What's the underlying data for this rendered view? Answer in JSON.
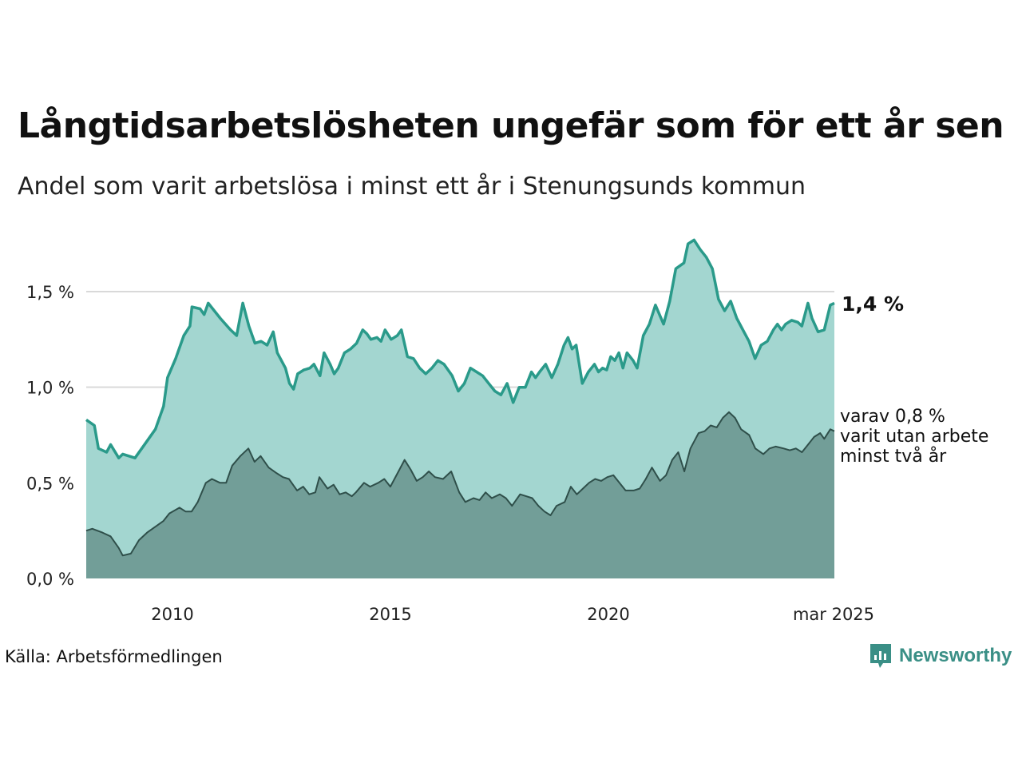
{
  "title": "Långtidsarbetslösheten ungefär som för ett år sen",
  "subtitle": "Andel som varit arbetslösa i minst ett år i Stenungsunds kommun",
  "source": "Källa: Arbetsförmedlingen",
  "brand": "Newsworthy",
  "colors": {
    "total_line": "#2a9a8a",
    "total_fill": "#a3d6d0",
    "long_line": "#2f4f4a",
    "long_fill": "#729e98",
    "grid": "#d9d9d9"
  },
  "chart_data": {
    "type": "area",
    "title": "Långtidsarbetslösheten ungefär som för ett år sen",
    "ylabel": "",
    "xlabel": "",
    "ylim": [
      0,
      1.8
    ],
    "xlim": [
      2008.0,
      2025.17
    ],
    "grid": true,
    "yticks": [
      {
        "value": 0.0,
        "label": "0,0 %"
      },
      {
        "value": 0.5,
        "label": "0,5 %"
      },
      {
        "value": 1.0,
        "label": "1,0 %"
      },
      {
        "value": 1.5,
        "label": "1,5 %"
      }
    ],
    "xticks": [
      {
        "value": 2010,
        "label": "2010"
      },
      {
        "value": 2015,
        "label": "2015"
      },
      {
        "value": 2020,
        "label": "2020"
      },
      {
        "value": 2025,
        "label": "mar 2025"
      }
    ],
    "annotations": {
      "total_label": "1,4 %",
      "long_label_lines": [
        "varav 0,8 %",
        "varit utan arbete",
        "minst två år"
      ]
    },
    "series": [
      {
        "key": "total",
        "points": [
          [
            2008.0,
            0.83
          ],
          [
            2008.2,
            0.8
          ],
          [
            2008.3,
            0.68
          ],
          [
            2008.5,
            0.66
          ],
          [
            2008.6,
            0.7
          ],
          [
            2008.8,
            0.63
          ],
          [
            2008.9,
            0.65
          ],
          [
            2009.2,
            0.63
          ],
          [
            2009.5,
            0.72
          ],
          [
            2009.7,
            0.78
          ],
          [
            2009.9,
            0.9
          ],
          [
            2010.0,
            1.05
          ],
          [
            2010.2,
            1.15
          ],
          [
            2010.4,
            1.27
          ],
          [
            2010.55,
            1.32
          ],
          [
            2010.6,
            1.42
          ],
          [
            2010.8,
            1.41
          ],
          [
            2010.9,
            1.38
          ],
          [
            2011.0,
            1.44
          ],
          [
            2011.3,
            1.36
          ],
          [
            2011.55,
            1.3
          ],
          [
            2011.7,
            1.27
          ],
          [
            2011.85,
            1.44
          ],
          [
            2012.0,
            1.32
          ],
          [
            2012.15,
            1.23
          ],
          [
            2012.3,
            1.24
          ],
          [
            2012.45,
            1.22
          ],
          [
            2012.6,
            1.29
          ],
          [
            2012.7,
            1.18
          ],
          [
            2012.9,
            1.1
          ],
          [
            2013.0,
            1.02
          ],
          [
            2013.1,
            0.99
          ],
          [
            2013.2,
            1.07
          ],
          [
            2013.35,
            1.09
          ],
          [
            2013.5,
            1.1
          ],
          [
            2013.6,
            1.12
          ],
          [
            2013.75,
            1.06
          ],
          [
            2013.85,
            1.18
          ],
          [
            2014.0,
            1.12
          ],
          [
            2014.1,
            1.07
          ],
          [
            2014.2,
            1.1
          ],
          [
            2014.35,
            1.18
          ],
          [
            2014.5,
            1.2
          ],
          [
            2014.65,
            1.23
          ],
          [
            2014.8,
            1.3
          ],
          [
            2014.9,
            1.28
          ],
          [
            2015.0,
            1.25
          ],
          [
            2015.15,
            1.26
          ],
          [
            2015.25,
            1.24
          ],
          [
            2015.35,
            1.3
          ],
          [
            2015.5,
            1.25
          ],
          [
            2015.65,
            1.27
          ],
          [
            2015.75,
            1.3
          ],
          [
            2015.9,
            1.16
          ],
          [
            2016.05,
            1.15
          ],
          [
            2016.2,
            1.1
          ],
          [
            2016.35,
            1.07
          ],
          [
            2016.5,
            1.1
          ],
          [
            2016.65,
            1.14
          ],
          [
            2016.8,
            1.12
          ],
          [
            2017.0,
            1.06
          ],
          [
            2017.15,
            0.98
          ],
          [
            2017.3,
            1.02
          ],
          [
            2017.45,
            1.1
          ],
          [
            2017.6,
            1.08
          ],
          [
            2017.75,
            1.06
          ],
          [
            2017.9,
            1.02
          ],
          [
            2018.05,
            0.98
          ],
          [
            2018.2,
            0.96
          ],
          [
            2018.35,
            1.02
          ],
          [
            2018.5,
            0.92
          ],
          [
            2018.65,
            1.0
          ],
          [
            2018.8,
            1.0
          ],
          [
            2018.95,
            1.08
          ],
          [
            2019.05,
            1.05
          ],
          [
            2019.15,
            1.08
          ],
          [
            2019.3,
            1.12
          ],
          [
            2019.45,
            1.05
          ],
          [
            2019.6,
            1.12
          ],
          [
            2019.75,
            1.22
          ],
          [
            2019.85,
            1.26
          ],
          [
            2019.95,
            1.2
          ],
          [
            2020.05,
            1.22
          ],
          [
            2020.2,
            1.02
          ],
          [
            2020.35,
            1.08
          ],
          [
            2020.5,
            1.12
          ],
          [
            2020.6,
            1.08
          ],
          [
            2020.7,
            1.1
          ],
          [
            2020.8,
            1.09
          ],
          [
            2020.9,
            1.16
          ],
          [
            2021.0,
            1.14
          ],
          [
            2021.1,
            1.18
          ],
          [
            2021.2,
            1.1
          ],
          [
            2021.3,
            1.18
          ],
          [
            2021.45,
            1.14
          ],
          [
            2021.55,
            1.1
          ],
          [
            2021.7,
            1.27
          ],
          [
            2021.85,
            1.33
          ],
          [
            2022.0,
            1.43
          ],
          [
            2022.2,
            1.33
          ],
          [
            2022.35,
            1.45
          ],
          [
            2022.5,
            1.62
          ],
          [
            2022.7,
            1.65
          ],
          [
            2022.8,
            1.75
          ],
          [
            2022.95,
            1.77
          ],
          [
            2023.1,
            1.72
          ],
          [
            2023.25,
            1.68
          ],
          [
            2023.4,
            1.62
          ],
          [
            2023.55,
            1.46
          ],
          [
            2023.7,
            1.4
          ],
          [
            2023.85,
            1.45
          ],
          [
            2024.0,
            1.36
          ],
          [
            2024.2,
            1.28
          ],
          [
            2024.3,
            1.24
          ],
          [
            2024.45,
            1.15
          ],
          [
            2024.6,
            1.22
          ],
          [
            2024.75,
            1.24
          ],
          [
            2024.9,
            1.3
          ],
          [
            2025.0,
            1.33
          ],
          [
            2025.1,
            1.3
          ],
          [
            2025.2,
            1.33
          ],
          [
            2025.35,
            1.35
          ],
          [
            2025.5,
            1.34
          ],
          [
            2025.6,
            1.32
          ],
          [
            2025.75,
            1.44
          ],
          [
            2025.85,
            1.36
          ],
          [
            2026.0,
            1.29
          ],
          [
            2026.15,
            1.3
          ],
          [
            2026.3,
            1.43
          ],
          [
            2026.4,
            1.44
          ]
        ]
      },
      {
        "key": "long",
        "points": [
          [
            2008.0,
            0.25
          ],
          [
            2008.15,
            0.26
          ],
          [
            2008.4,
            0.24
          ],
          [
            2008.6,
            0.22
          ],
          [
            2008.8,
            0.16
          ],
          [
            2008.9,
            0.12
          ],
          [
            2009.1,
            0.13
          ],
          [
            2009.3,
            0.2
          ],
          [
            2009.5,
            0.24
          ],
          [
            2009.7,
            0.27
          ],
          [
            2009.9,
            0.3
          ],
          [
            2010.05,
            0.34
          ],
          [
            2010.3,
            0.37
          ],
          [
            2010.45,
            0.35
          ],
          [
            2010.6,
            0.35
          ],
          [
            2010.75,
            0.4
          ],
          [
            2010.95,
            0.5
          ],
          [
            2011.1,
            0.52
          ],
          [
            2011.3,
            0.5
          ],
          [
            2011.45,
            0.5
          ],
          [
            2011.6,
            0.59
          ],
          [
            2011.8,
            0.64
          ],
          [
            2012.0,
            0.68
          ],
          [
            2012.15,
            0.61
          ],
          [
            2012.3,
            0.64
          ],
          [
            2012.5,
            0.58
          ],
          [
            2012.7,
            0.55
          ],
          [
            2012.85,
            0.53
          ],
          [
            2013.0,
            0.52
          ],
          [
            2013.2,
            0.46
          ],
          [
            2013.35,
            0.48
          ],
          [
            2013.5,
            0.44
          ],
          [
            2013.65,
            0.45
          ],
          [
            2013.75,
            0.53
          ],
          [
            2013.95,
            0.47
          ],
          [
            2014.1,
            0.49
          ],
          [
            2014.25,
            0.44
          ],
          [
            2014.4,
            0.45
          ],
          [
            2014.55,
            0.43
          ],
          [
            2014.65,
            0.45
          ],
          [
            2014.85,
            0.5
          ],
          [
            2015.0,
            0.48
          ],
          [
            2015.2,
            0.5
          ],
          [
            2015.35,
            0.52
          ],
          [
            2015.5,
            0.48
          ],
          [
            2015.7,
            0.56
          ],
          [
            2015.85,
            0.62
          ],
          [
            2016.0,
            0.57
          ],
          [
            2016.15,
            0.51
          ],
          [
            2016.3,
            0.53
          ],
          [
            2016.45,
            0.56
          ],
          [
            2016.6,
            0.53
          ],
          [
            2016.8,
            0.52
          ],
          [
            2017.0,
            0.56
          ],
          [
            2017.2,
            0.45
          ],
          [
            2017.35,
            0.4
          ],
          [
            2017.55,
            0.42
          ],
          [
            2017.7,
            0.41
          ],
          [
            2017.85,
            0.45
          ],
          [
            2018.0,
            0.42
          ],
          [
            2018.2,
            0.44
          ],
          [
            2018.35,
            0.42
          ],
          [
            2018.5,
            0.38
          ],
          [
            2018.7,
            0.44
          ],
          [
            2018.85,
            0.43
          ],
          [
            2019.0,
            0.42
          ],
          [
            2019.15,
            0.38
          ],
          [
            2019.3,
            0.35
          ],
          [
            2019.45,
            0.33
          ],
          [
            2019.6,
            0.38
          ],
          [
            2019.8,
            0.4
          ],
          [
            2019.95,
            0.48
          ],
          [
            2020.1,
            0.44
          ],
          [
            2020.25,
            0.47
          ],
          [
            2020.4,
            0.5
          ],
          [
            2020.55,
            0.52
          ],
          [
            2020.7,
            0.51
          ],
          [
            2020.85,
            0.53
          ],
          [
            2021.0,
            0.54
          ],
          [
            2021.15,
            0.5
          ],
          [
            2021.3,
            0.46
          ],
          [
            2021.5,
            0.46
          ],
          [
            2021.65,
            0.47
          ],
          [
            2021.8,
            0.52
          ],
          [
            2021.95,
            0.58
          ],
          [
            2022.15,
            0.51
          ],
          [
            2022.3,
            0.54
          ],
          [
            2022.45,
            0.62
          ],
          [
            2022.6,
            0.66
          ],
          [
            2022.75,
            0.56
          ],
          [
            2022.9,
            0.68
          ],
          [
            2023.0,
            0.72
          ],
          [
            2023.1,
            0.76
          ],
          [
            2023.25,
            0.77
          ],
          [
            2023.4,
            0.8
          ],
          [
            2023.55,
            0.79
          ],
          [
            2023.7,
            0.84
          ],
          [
            2023.85,
            0.87
          ],
          [
            2024.0,
            0.84
          ],
          [
            2024.15,
            0.78
          ],
          [
            2024.35,
            0.75
          ],
          [
            2024.5,
            0.68
          ],
          [
            2024.7,
            0.65
          ],
          [
            2024.85,
            0.68
          ],
          [
            2025.0,
            0.69
          ],
          [
            2025.2,
            0.68
          ],
          [
            2025.35,
            0.67
          ],
          [
            2025.5,
            0.68
          ],
          [
            2025.65,
            0.66
          ],
          [
            2025.8,
            0.7
          ],
          [
            2025.95,
            0.74
          ],
          [
            2026.1,
            0.76
          ],
          [
            2026.2,
            0.73
          ],
          [
            2026.35,
            0.78
          ],
          [
            2026.45,
            0.77
          ]
        ]
      }
    ]
  }
}
